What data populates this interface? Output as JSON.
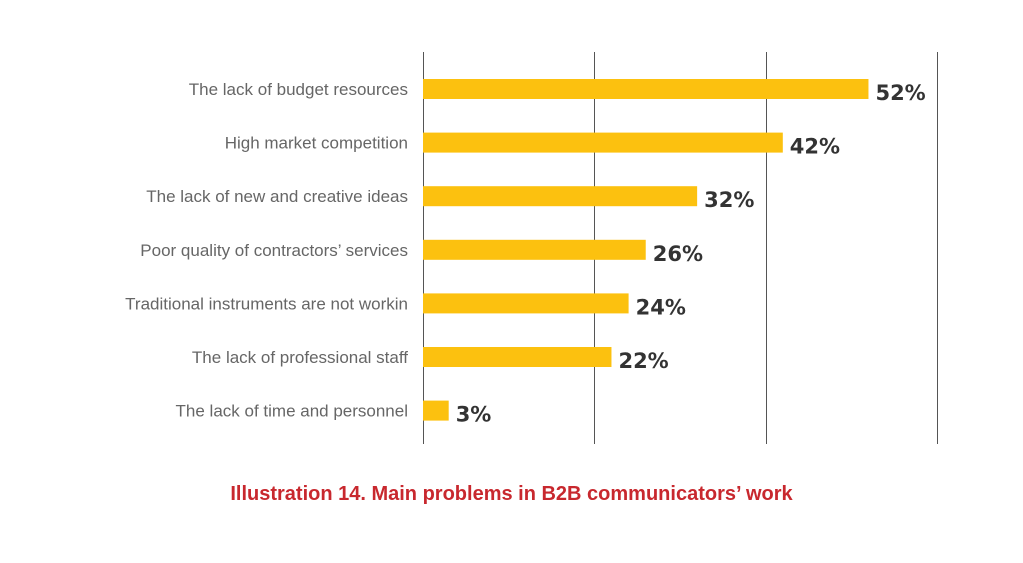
{
  "chart_data": {
    "type": "bar",
    "orientation": "horizontal",
    "categories": [
      "The lack of budget resources",
      "High market competition",
      "The lack of new and creative ideas",
      "Poor quality of contractors’ services",
      "Traditional instruments are not workin",
      "The lack of professional staff",
      "The lack of time and personnel"
    ],
    "values": [
      52,
      42,
      32,
      26,
      24,
      22,
      3
    ],
    "value_labels": [
      "52%",
      "42%",
      "32%",
      "26%",
      "24%",
      "22%",
      "3%"
    ],
    "xlim": [
      0,
      60
    ],
    "gridlines_x": [
      0,
      20,
      40,
      60
    ],
    "grid": true,
    "bar_color": "#FCC10F",
    "title": "",
    "xlabel": "",
    "ylabel": ""
  },
  "caption": "Illustration 14. Main problems in B2B communicators’ work",
  "colors": {
    "caption": "#C8282E",
    "category_text": "#666666",
    "value_text": "#333333",
    "gridline": "#555555"
  }
}
